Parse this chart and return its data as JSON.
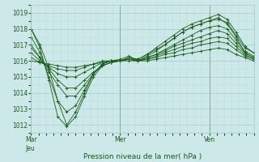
{
  "xlabel": "Pression niveau de la mer( hPa )",
  "bg_color": "#cce8e8",
  "grid_major_color": "#aacccc",
  "grid_minor_color": "#bbdddd",
  "line_color": "#1a5c1a",
  "ylim": [
    1011.5,
    1019.5
  ],
  "yticks": [
    1012,
    1013,
    1014,
    1015,
    1016,
    1017,
    1018,
    1019
  ],
  "xtick_positions": [
    0.0,
    0.4,
    0.8
  ],
  "xtick_labels": [
    "Mar\nJeu",
    "Mer",
    "Ven"
  ],
  "series": [
    {
      "x": [
        0.0,
        0.04,
        0.08,
        0.12,
        0.16,
        0.2,
        0.24,
        0.28,
        0.32,
        0.36,
        0.4,
        0.44,
        0.48,
        0.52,
        0.56,
        0.6,
        0.64,
        0.68,
        0.72,
        0.76,
        0.8,
        0.84,
        0.88,
        0.92,
        0.96,
        1.0
      ],
      "y": [
        1018.0,
        1017.0,
        1015.5,
        1013.5,
        1012.0,
        1012.8,
        1014.0,
        1015.2,
        1015.8,
        1016.0,
        1016.0,
        1016.2,
        1016.1,
        1016.4,
        1016.7,
        1017.0,
        1017.4,
        1017.8,
        1018.1,
        1018.3,
        1018.5,
        1018.7,
        1018.3,
        1017.5,
        1016.5,
        1016.2
      ]
    },
    {
      "x": [
        0.0,
        0.04,
        0.08,
        0.12,
        0.16,
        0.2,
        0.24,
        0.28,
        0.32,
        0.36,
        0.4,
        0.44,
        0.48,
        0.52,
        0.56,
        0.6,
        0.64,
        0.68,
        0.72,
        0.76,
        0.8,
        0.84,
        0.88,
        0.92,
        0.96,
        1.0
      ],
      "y": [
        1018.0,
        1016.8,
        1014.8,
        1012.5,
        1011.9,
        1012.5,
        1013.8,
        1015.0,
        1015.7,
        1015.9,
        1016.0,
        1016.2,
        1016.1,
        1016.4,
        1016.8,
        1017.2,
        1017.6,
        1018.0,
        1018.3,
        1018.5,
        1018.7,
        1018.9,
        1018.6,
        1017.8,
        1016.9,
        1016.5
      ]
    },
    {
      "x": [
        0.0,
        0.04,
        0.08,
        0.12,
        0.16,
        0.2,
        0.24,
        0.28,
        0.32,
        0.36,
        0.4,
        0.44,
        0.48,
        0.52,
        0.56,
        0.6,
        0.64,
        0.68,
        0.72,
        0.76,
        0.8,
        0.84,
        0.88,
        0.92,
        0.96,
        1.0
      ],
      "y": [
        1017.5,
        1016.5,
        1015.0,
        1013.5,
        1012.8,
        1013.2,
        1014.2,
        1015.2,
        1015.8,
        1016.0,
        1016.1,
        1016.3,
        1016.0,
        1016.3,
        1016.6,
        1017.0,
        1017.4,
        1017.8,
        1018.1,
        1018.3,
        1018.5,
        1018.6,
        1018.4,
        1017.6,
        1016.8,
        1016.5
      ]
    },
    {
      "x": [
        0.0,
        0.04,
        0.08,
        0.12,
        0.16,
        0.2,
        0.24,
        0.28,
        0.32,
        0.36,
        0.4,
        0.44,
        0.48,
        0.52,
        0.56,
        0.6,
        0.64,
        0.68,
        0.72,
        0.76,
        0.8,
        0.84,
        0.88,
        0.92,
        0.96,
        1.0
      ],
      "y": [
        1016.8,
        1016.2,
        1015.3,
        1014.5,
        1013.8,
        1013.8,
        1014.5,
        1015.2,
        1015.7,
        1015.9,
        1016.0,
        1016.2,
        1016.0,
        1016.2,
        1016.4,
        1016.7,
        1017.0,
        1017.3,
        1017.6,
        1017.9,
        1018.1,
        1018.2,
        1018.0,
        1017.3,
        1016.6,
        1016.3
      ]
    },
    {
      "x": [
        0.0,
        0.04,
        0.08,
        0.12,
        0.16,
        0.2,
        0.24,
        0.28,
        0.32,
        0.36,
        0.4,
        0.44,
        0.48,
        0.52,
        0.56,
        0.6,
        0.64,
        0.68,
        0.72,
        0.76,
        0.8,
        0.84,
        0.88,
        0.92,
        0.96,
        1.0
      ],
      "y": [
        1017.0,
        1016.2,
        1015.5,
        1014.8,
        1014.3,
        1014.3,
        1014.8,
        1015.3,
        1015.7,
        1015.9,
        1016.0,
        1016.1,
        1016.0,
        1016.2,
        1016.4,
        1016.6,
        1016.9,
        1017.1,
        1017.3,
        1017.5,
        1017.7,
        1017.9,
        1017.7,
        1017.1,
        1016.5,
        1016.2
      ]
    },
    {
      "x": [
        0.0,
        0.04,
        0.08,
        0.12,
        0.16,
        0.2,
        0.24,
        0.28,
        0.32,
        0.36,
        0.4,
        0.44,
        0.48,
        0.52,
        0.56,
        0.6,
        0.64,
        0.68,
        0.72,
        0.76,
        0.8,
        0.84,
        0.88,
        0.92,
        0.96,
        1.0
      ],
      "y": [
        1016.5,
        1016.0,
        1015.6,
        1015.2,
        1015.0,
        1015.0,
        1015.3,
        1015.6,
        1015.9,
        1016.0,
        1016.0,
        1016.1,
        1016.0,
        1016.1,
        1016.3,
        1016.5,
        1016.7,
        1016.9,
        1017.1,
        1017.2,
        1017.4,
        1017.5,
        1017.4,
        1016.9,
        1016.4,
        1016.1
      ]
    },
    {
      "x": [
        0.0,
        0.04,
        0.08,
        0.12,
        0.16,
        0.2,
        0.24,
        0.28,
        0.32,
        0.36,
        0.4,
        0.44,
        0.48,
        0.52,
        0.56,
        0.6,
        0.64,
        0.68,
        0.72,
        0.76,
        0.8,
        0.84,
        0.88,
        0.92,
        0.96,
        1.0
      ],
      "y": [
        1016.2,
        1015.9,
        1015.7,
        1015.5,
        1015.4,
        1015.4,
        1015.6,
        1015.8,
        1016.0,
        1016.0,
        1016.0,
        1016.1,
        1016.0,
        1016.1,
        1016.2,
        1016.4,
        1016.5,
        1016.7,
        1016.8,
        1017.0,
        1017.1,
        1017.2,
        1017.1,
        1016.7,
        1016.3,
        1016.1
      ]
    },
    {
      "x": [
        0.0,
        0.04,
        0.08,
        0.12,
        0.16,
        0.2,
        0.24,
        0.28,
        0.32,
        0.36,
        0.4,
        0.44,
        0.48,
        0.52,
        0.56,
        0.6,
        0.64,
        0.68,
        0.72,
        0.76,
        0.8,
        0.84,
        0.88,
        0.92,
        0.96,
        1.0
      ],
      "y": [
        1016.0,
        1015.9,
        1015.8,
        1015.7,
        1015.6,
        1015.6,
        1015.7,
        1015.8,
        1015.9,
        1016.0,
        1016.0,
        1016.0,
        1016.0,
        1016.0,
        1016.1,
        1016.2,
        1016.3,
        1016.4,
        1016.5,
        1016.6,
        1016.7,
        1016.8,
        1016.7,
        1016.4,
        1016.2,
        1016.0
      ]
    }
  ]
}
